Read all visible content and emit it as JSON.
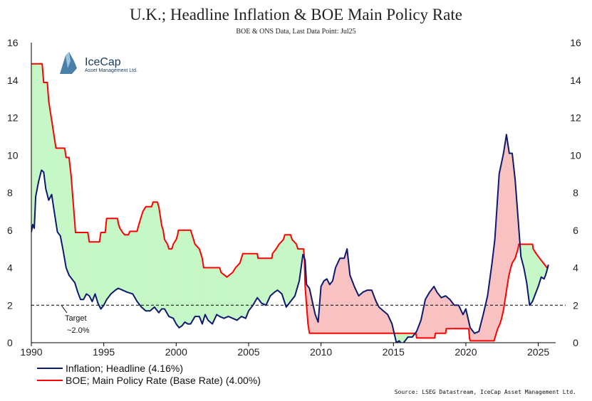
{
  "chart_data": {
    "type": "line",
    "title": "U.K.; Headline Inflation & BOE Main Policy Rate",
    "subtitle": "BOE & ONS Data, Last Data Point: Jul25",
    "source": "Source: LSEG Datastream, IceCap Asset Management Ltd.",
    "logo": {
      "name": "IceCap",
      "sub": "Asset Management Ltd."
    },
    "xlim": [
      1990,
      2026.2
    ],
    "ylim": [
      0,
      16
    ],
    "xticks": [
      1990,
      1995,
      2000,
      2005,
      2010,
      2015,
      2020,
      2025
    ],
    "yticks": [
      0,
      2,
      4,
      6,
      8,
      10,
      12,
      14,
      16
    ],
    "target": {
      "value": 2.0,
      "label1": "Target",
      "label2": "~2.0%"
    },
    "colors": {
      "inflation": "#0d1a6e",
      "boe": "#ff0000",
      "green_fill": "#c6f7c6",
      "red_fill": "#f9c2c2",
      "grid": "#000000"
    },
    "legend": [
      "Inflation; Headline (4.16%)",
      "BOE; Main Policy Rate (Base Rate) (4.00%)"
    ],
    "series": [
      {
        "name": "Inflation; Headline",
        "points": [
          [
            1990.0,
            5.9
          ],
          [
            1990.1,
            6.3
          ],
          [
            1990.2,
            6.1
          ],
          [
            1990.3,
            7.8
          ],
          [
            1990.5,
            8.6
          ],
          [
            1990.7,
            9.2
          ],
          [
            1990.85,
            9.1
          ],
          [
            1991.0,
            8.2
          ],
          [
            1991.2,
            7.6
          ],
          [
            1991.4,
            7.9
          ],
          [
            1991.6,
            6.9
          ],
          [
            1991.8,
            5.9
          ],
          [
            1992.0,
            5.7
          ],
          [
            1992.2,
            4.9
          ],
          [
            1992.4,
            4.0
          ],
          [
            1992.6,
            3.6
          ],
          [
            1992.8,
            3.4
          ],
          [
            1993.0,
            3.2
          ],
          [
            1993.2,
            2.7
          ],
          [
            1993.4,
            2.3
          ],
          [
            1993.6,
            2.3
          ],
          [
            1993.8,
            2.6
          ],
          [
            1994.0,
            2.5
          ],
          [
            1994.2,
            2.2
          ],
          [
            1994.4,
            2.6
          ],
          [
            1994.6,
            2.1
          ],
          [
            1994.8,
            1.8
          ],
          [
            1995.0,
            2.0
          ],
          [
            1995.2,
            2.3
          ],
          [
            1995.5,
            2.6
          ],
          [
            1995.8,
            2.8
          ],
          [
            1996.0,
            2.9
          ],
          [
            1996.3,
            2.8
          ],
          [
            1996.6,
            2.7
          ],
          [
            1997.0,
            2.6
          ],
          [
            1997.3,
            2.2
          ],
          [
            1997.6,
            1.9
          ],
          [
            1997.9,
            1.7
          ],
          [
            1998.2,
            1.7
          ],
          [
            1998.5,
            1.9
          ],
          [
            1998.8,
            1.6
          ],
          [
            1999.0,
            1.8
          ],
          [
            1999.2,
            1.8
          ],
          [
            1999.5,
            1.4
          ],
          [
            1999.8,
            1.3
          ],
          [
            2000.0,
            1.0
          ],
          [
            2000.2,
            0.8
          ],
          [
            2000.4,
            0.9
          ],
          [
            2000.6,
            1.1
          ],
          [
            2000.8,
            1.0
          ],
          [
            2001.0,
            1.0
          ],
          [
            2001.3,
            1.4
          ],
          [
            2001.6,
            1.4
          ],
          [
            2001.8,
            1.0
          ],
          [
            2002.0,
            1.5
          ],
          [
            2002.2,
            1.2
          ],
          [
            2002.5,
            1.0
          ],
          [
            2002.8,
            1.5
          ],
          [
            2003.0,
            1.4
          ],
          [
            2003.3,
            1.3
          ],
          [
            2003.6,
            1.4
          ],
          [
            2003.9,
            1.3
          ],
          [
            2004.2,
            1.2
          ],
          [
            2004.5,
            1.4
          ],
          [
            2004.8,
            1.3
          ],
          [
            2005.0,
            1.7
          ],
          [
            2005.3,
            2.0
          ],
          [
            2005.6,
            2.4
          ],
          [
            2005.9,
            2.1
          ],
          [
            2006.2,
            2.0
          ],
          [
            2006.5,
            2.5
          ],
          [
            2006.8,
            2.7
          ],
          [
            2007.0,
            2.8
          ],
          [
            2007.3,
            2.6
          ],
          [
            2007.6,
            1.9
          ],
          [
            2007.9,
            2.2
          ],
          [
            2008.2,
            2.5
          ],
          [
            2008.5,
            3.3
          ],
          [
            2008.75,
            4.7
          ],
          [
            2008.9,
            4.4
          ],
          [
            2009.0,
            3.1
          ],
          [
            2009.2,
            2.9
          ],
          [
            2009.4,
            2.2
          ],
          [
            2009.6,
            1.5
          ],
          [
            2009.8,
            1.1
          ],
          [
            2010.0,
            3.0
          ],
          [
            2010.2,
            3.3
          ],
          [
            2010.4,
            3.4
          ],
          [
            2010.6,
            3.1
          ],
          [
            2010.8,
            3.3
          ],
          [
            2011.0,
            4.0
          ],
          [
            2011.3,
            4.5
          ],
          [
            2011.6,
            4.5
          ],
          [
            2011.8,
            5.0
          ],
          [
            2012.0,
            3.6
          ],
          [
            2012.3,
            3.0
          ],
          [
            2012.6,
            2.5
          ],
          [
            2012.9,
            2.7
          ],
          [
            2013.2,
            2.8
          ],
          [
            2013.5,
            2.8
          ],
          [
            2013.8,
            2.2
          ],
          [
            2014.0,
            1.9
          ],
          [
            2014.3,
            1.7
          ],
          [
            2014.6,
            1.5
          ],
          [
            2014.9,
            1.0
          ],
          [
            2015.2,
            0.0
          ],
          [
            2015.4,
            0.1
          ],
          [
            2015.6,
            -0.1
          ],
          [
            2015.8,
            0.1
          ],
          [
            2016.0,
            0.3
          ],
          [
            2016.3,
            0.3
          ],
          [
            2016.6,
            0.6
          ],
          [
            2016.9,
            1.2
          ],
          [
            2017.2,
            2.3
          ],
          [
            2017.5,
            2.7
          ],
          [
            2017.8,
            3.0
          ],
          [
            2018.0,
            2.7
          ],
          [
            2018.3,
            2.4
          ],
          [
            2018.6,
            2.5
          ],
          [
            2018.9,
            2.3
          ],
          [
            2019.2,
            2.0
          ],
          [
            2019.5,
            2.0
          ],
          [
            2019.8,
            1.5
          ],
          [
            2020.0,
            1.8
          ],
          [
            2020.3,
            0.8
          ],
          [
            2020.6,
            0.5
          ],
          [
            2020.9,
            0.6
          ],
          [
            2021.2,
            1.5
          ],
          [
            2021.5,
            2.5
          ],
          [
            2021.8,
            4.2
          ],
          [
            2022.0,
            5.5
          ],
          [
            2022.3,
            9.0
          ],
          [
            2022.6,
            10.1
          ],
          [
            2022.8,
            11.1
          ],
          [
            2023.0,
            10.1
          ],
          [
            2023.2,
            10.1
          ],
          [
            2023.4,
            8.7
          ],
          [
            2023.6,
            6.7
          ],
          [
            2023.8,
            4.6
          ],
          [
            2024.0,
            4.0
          ],
          [
            2024.2,
            3.2
          ],
          [
            2024.4,
            2.0
          ],
          [
            2024.6,
            2.2
          ],
          [
            2024.8,
            2.6
          ],
          [
            2025.0,
            3.0
          ],
          [
            2025.2,
            3.5
          ],
          [
            2025.4,
            3.4
          ],
          [
            2025.5,
            3.6
          ],
          [
            2025.58,
            3.8
          ],
          [
            2025.7,
            4.16
          ]
        ]
      },
      {
        "name": "BOE; Main Policy Rate (Base Rate)",
        "points": [
          [
            1990.0,
            14.875
          ],
          [
            1990.75,
            14.875
          ],
          [
            1990.85,
            13.875
          ],
          [
            1991.1,
            13.875
          ],
          [
            1991.2,
            12.875
          ],
          [
            1991.3,
            12.375
          ],
          [
            1991.4,
            11.875
          ],
          [
            1991.5,
            11.375
          ],
          [
            1991.6,
            10.875
          ],
          [
            1991.7,
            10.375
          ],
          [
            1992.3,
            10.375
          ],
          [
            1992.4,
            9.875
          ],
          [
            1992.6,
            9.875
          ],
          [
            1992.75,
            8.875
          ],
          [
            1992.85,
            7.875
          ],
          [
            1992.95,
            6.875
          ],
          [
            1993.05,
            5.875
          ],
          [
            1993.9,
            5.875
          ],
          [
            1994.0,
            5.375
          ],
          [
            1994.7,
            5.375
          ],
          [
            1994.8,
            5.875
          ],
          [
            1995.1,
            5.875
          ],
          [
            1995.2,
            6.625
          ],
          [
            1995.95,
            6.625
          ],
          [
            1996.0,
            6.375
          ],
          [
            1996.1,
            6.125
          ],
          [
            1996.3,
            5.875
          ],
          [
            1996.45,
            5.75
          ],
          [
            1996.7,
            5.75
          ],
          [
            1996.8,
            5.938
          ],
          [
            1997.3,
            5.938
          ],
          [
            1997.4,
            6.25
          ],
          [
            1997.5,
            6.5
          ],
          [
            1997.6,
            6.75
          ],
          [
            1997.7,
            7.0
          ],
          [
            1997.9,
            7.25
          ],
          [
            1998.3,
            7.25
          ],
          [
            1998.4,
            7.5
          ],
          [
            1998.7,
            7.5
          ],
          [
            1998.8,
            7.25
          ],
          [
            1998.9,
            6.75
          ],
          [
            1999.0,
            6.25
          ],
          [
            1999.1,
            6.0
          ],
          [
            1999.2,
            5.5
          ],
          [
            1999.4,
            5.25
          ],
          [
            1999.5,
            5.0
          ],
          [
            1999.7,
            5.0
          ],
          [
            1999.8,
            5.25
          ],
          [
            2000.0,
            5.5
          ],
          [
            2000.1,
            5.75
          ],
          [
            2000.15,
            6.0
          ],
          [
            2001.0,
            6.0
          ],
          [
            2001.1,
            5.75
          ],
          [
            2001.2,
            5.5
          ],
          [
            2001.3,
            5.25
          ],
          [
            2001.6,
            5.0
          ],
          [
            2001.7,
            4.75
          ],
          [
            2001.8,
            4.5
          ],
          [
            2001.9,
            4.0
          ],
          [
            2003.0,
            4.0
          ],
          [
            2003.1,
            3.75
          ],
          [
            2003.5,
            3.5
          ],
          [
            2003.9,
            3.75
          ],
          [
            2004.1,
            4.0
          ],
          [
            2004.4,
            4.25
          ],
          [
            2004.5,
            4.5
          ],
          [
            2004.6,
            4.75
          ],
          [
            2005.6,
            4.75
          ],
          [
            2005.65,
            4.5
          ],
          [
            2006.6,
            4.5
          ],
          [
            2006.65,
            4.75
          ],
          [
            2006.9,
            5.0
          ],
          [
            2007.1,
            5.25
          ],
          [
            2007.4,
            5.5
          ],
          [
            2007.5,
            5.75
          ],
          [
            2007.9,
            5.75
          ],
          [
            2008.0,
            5.5
          ],
          [
            2008.3,
            5.25
          ],
          [
            2008.4,
            5.0
          ],
          [
            2008.8,
            5.0
          ],
          [
            2008.85,
            4.5
          ],
          [
            2008.9,
            3.0
          ],
          [
            2009.0,
            2.0
          ],
          [
            2009.05,
            1.5
          ],
          [
            2009.1,
            1.0
          ],
          [
            2009.2,
            0.5
          ],
          [
            2016.55,
            0.5
          ],
          [
            2016.6,
            0.25
          ],
          [
            2017.85,
            0.25
          ],
          [
            2017.9,
            0.5
          ],
          [
            2018.6,
            0.5
          ],
          [
            2018.65,
            0.75
          ],
          [
            2020.2,
            0.75
          ],
          [
            2020.25,
            0.25
          ],
          [
            2020.3,
            0.1
          ],
          [
            2021.95,
            0.1
          ],
          [
            2022.0,
            0.25
          ],
          [
            2022.1,
            0.5
          ],
          [
            2022.2,
            0.75
          ],
          [
            2022.35,
            1.0
          ],
          [
            2022.45,
            1.25
          ],
          [
            2022.6,
            1.75
          ],
          [
            2022.7,
            2.25
          ],
          [
            2022.85,
            3.0
          ],
          [
            2022.95,
            3.5
          ],
          [
            2023.1,
            4.0
          ],
          [
            2023.2,
            4.25
          ],
          [
            2023.4,
            4.5
          ],
          [
            2023.6,
            5.0
          ],
          [
            2023.65,
            5.25
          ],
          [
            2024.6,
            5.25
          ],
          [
            2024.65,
            5.0
          ],
          [
            2024.85,
            4.75
          ],
          [
            2025.1,
            4.5
          ],
          [
            2025.35,
            4.25
          ],
          [
            2025.6,
            4.0
          ],
          [
            2025.7,
            4.0
          ]
        ]
      }
    ]
  }
}
